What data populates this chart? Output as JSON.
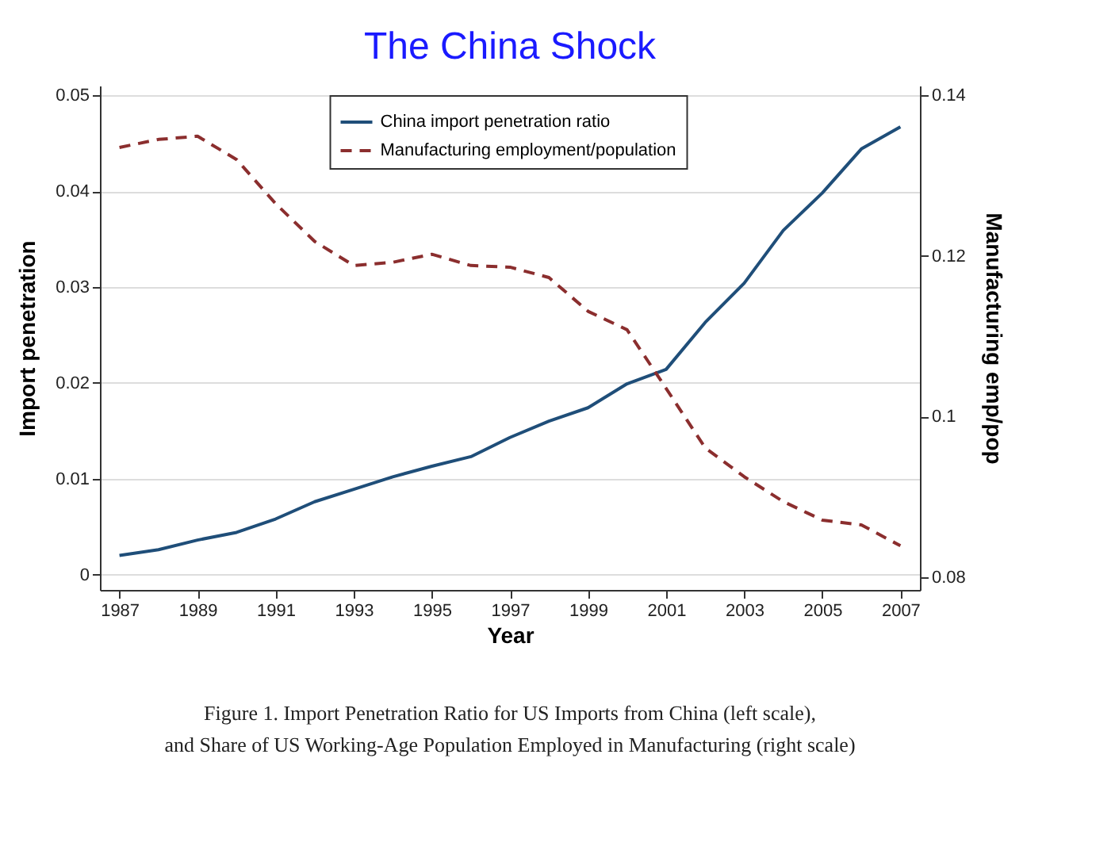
{
  "chart_data": {
    "type": "line",
    "title": "The China Shock",
    "xlabel": "Year",
    "ylabel": "Import penetration",
    "y2label": "Manufacturing emp/pop",
    "x": [
      1987,
      1988,
      1989,
      1990,
      1991,
      1992,
      1993,
      1994,
      1995,
      1996,
      1997,
      1998,
      1999,
      2000,
      2001,
      2002,
      2003,
      2004,
      2005,
      2006,
      2007
    ],
    "series": [
      {
        "name": "China import penetration ratio",
        "color": "#1f4e79",
        "line_style": "solid",
        "values": [
          0.002,
          0.0026,
          0.0036,
          0.0044,
          0.0058,
          0.0076,
          0.0089,
          0.0102,
          0.0113,
          0.0123,
          0.0143,
          0.016,
          0.0174,
          0.0199,
          0.0214,
          0.0263,
          0.0304,
          0.0359,
          0.0398,
          0.0444,
          0.0467
        ]
      },
      {
        "name": "Manufacturing employment/population",
        "color": "#8b2e2e",
        "line_style": "dashed",
        "axis": "y2",
        "values": [
          0.1335,
          0.1345,
          0.1349,
          0.132,
          0.1265,
          0.1218,
          0.1188,
          0.1192,
          0.1202,
          0.1188,
          0.1186,
          0.1173,
          0.1131,
          0.1108,
          0.1035,
          0.0961,
          0.0925,
          0.0894,
          0.0871,
          0.0865,
          0.0839
        ]
      }
    ],
    "xlim": [
      1986.5,
      2007.5
    ],
    "xticks": [
      1987,
      1989,
      1991,
      1993,
      1995,
      1997,
      1999,
      2001,
      2003,
      2005,
      2007
    ],
    "ylim": [
      -0.0016,
      0.051
    ],
    "yticks": [
      0,
      0.01,
      0.02,
      0.03,
      0.04,
      0.05
    ],
    "y2lim": [
      0.0784,
      0.1412
    ],
    "y2ticks": [
      0.08,
      0.1,
      0.12,
      0.14
    ],
    "grid": "y",
    "legend": "top",
    "marker": "none",
    "annotations": [
      "Figure 1. Import Penetration Ratio for US Imports from China (left scale),",
      "and Share of US Working-Age Population Employed in Manufacturing (right scale)"
    ]
  }
}
